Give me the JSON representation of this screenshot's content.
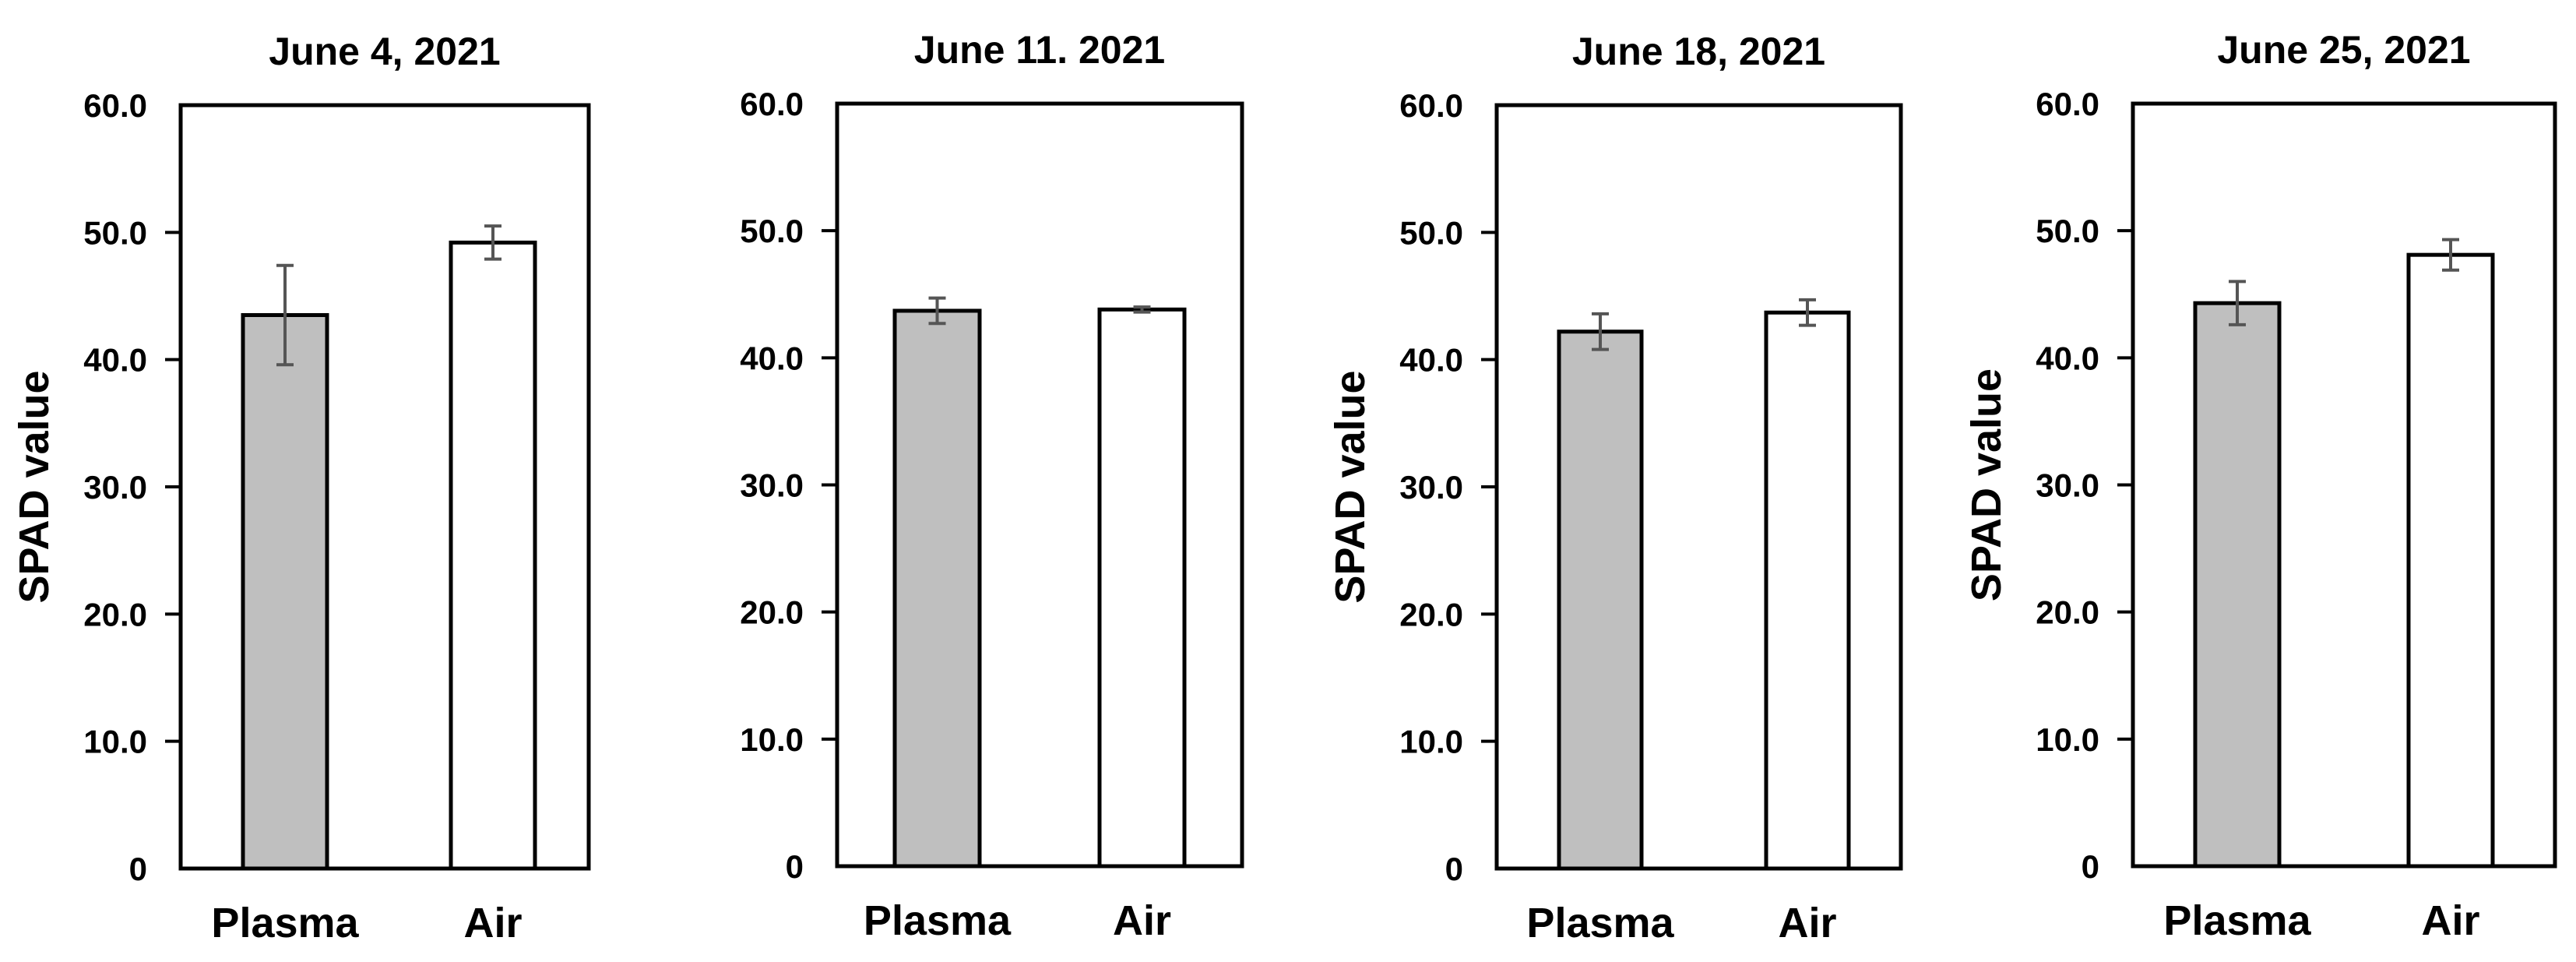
{
  "chart_data": [
    {
      "type": "bar",
      "title": "June 4, 2021",
      "ylabel": "SPAD value",
      "xlabel": "",
      "categories": [
        "Plasma",
        "Air"
      ],
      "values": [
        43.5,
        49.2
      ],
      "errors": [
        3.9,
        1.3
      ],
      "ylim": [
        0,
        60
      ],
      "yticks": [
        "0",
        "10.0",
        "20.0",
        "30.0",
        "40.0",
        "50.0",
        "60.0"
      ],
      "bar_colors": [
        "#bfbfbf",
        "#ffffff"
      ]
    },
    {
      "type": "bar",
      "title": "June 11. 2021",
      "ylabel": "",
      "xlabel": "",
      "categories": [
        "Plasma",
        "Air"
      ],
      "values": [
        43.7,
        43.8
      ],
      "errors": [
        1.0,
        0.2
      ],
      "ylim": [
        0,
        60
      ],
      "yticks": [
        "0",
        "10.0",
        "20.0",
        "30.0",
        "40.0",
        "50.0",
        "60.0"
      ],
      "bar_colors": [
        "#bfbfbf",
        "#ffffff"
      ]
    },
    {
      "type": "bar",
      "title": "June 18, 2021",
      "ylabel": "SPAD value",
      "xlabel": "",
      "categories": [
        "Plasma",
        "Air"
      ],
      "values": [
        42.2,
        43.7
      ],
      "errors": [
        1.4,
        1.0
      ],
      "ylim": [
        0,
        60
      ],
      "yticks": [
        "0",
        "10.0",
        "20.0",
        "30.0",
        "40.0",
        "50.0",
        "60.0"
      ],
      "bar_colors": [
        "#bfbfbf",
        "#ffffff"
      ]
    },
    {
      "type": "bar",
      "title": "June 25, 2021",
      "ylabel": "SPAD value",
      "xlabel": "",
      "categories": [
        "Plasma",
        "Air"
      ],
      "values": [
        44.3,
        48.1
      ],
      "errors": [
        1.7,
        1.2
      ],
      "ylim": [
        0,
        60
      ],
      "yticks": [
        "0",
        "10.0",
        "20.0",
        "30.0",
        "40.0",
        "50.0",
        "60.0"
      ],
      "bar_colors": [
        "#bfbfbf",
        "#ffffff"
      ]
    }
  ]
}
